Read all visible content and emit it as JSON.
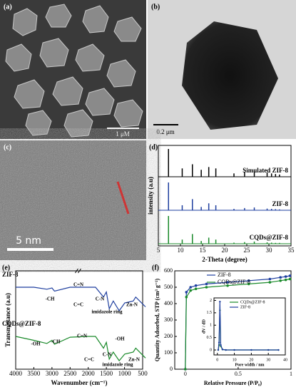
{
  "panels": {
    "a": {
      "label": "(a)",
      "scale": "1 μM"
    },
    "b": {
      "label": "(b)",
      "scale": "0.2 μm"
    },
    "c": {
      "label": "(c)",
      "scale": "5 nm"
    },
    "d": {
      "label": "(d)"
    },
    "e": {
      "label": "(e)"
    },
    "f": {
      "label": "(f)"
    }
  },
  "chart_data": [
    {
      "type": "stick",
      "xlabel": "2-Theta (degree)",
      "ylabel": "intensity (a.u)",
      "xlim": [
        5,
        35
      ],
      "xticks": [
        5,
        10,
        15,
        20,
        25,
        30,
        35
      ],
      "ylim": [
        0,
        100
      ],
      "x": [
        7.3,
        10.4,
        12.7,
        14.7,
        16.4,
        18.0,
        22.1,
        24.5,
        26.7,
        29.6,
        30.6,
        31.5,
        32.4
      ],
      "series": [
        {
          "name": "Simulated ZIF-8",
          "color": "#000000",
          "values": [
            100,
            30,
            45,
            25,
            35,
            30,
            12,
            18,
            20,
            15,
            12,
            10,
            8
          ]
        },
        {
          "name": "ZIF-8",
          "color": "#1f3f9f",
          "values": [
            100,
            18,
            40,
            12,
            25,
            18,
            5,
            8,
            10,
            6,
            5,
            4,
            3
          ]
        },
        {
          "name": "CQDs@ZIF-8",
          "color": "#1a8a2a",
          "values": [
            100,
            15,
            35,
            10,
            22,
            15,
            4,
            6,
            8,
            5,
            4,
            3,
            3
          ]
        }
      ]
    },
    {
      "type": "line",
      "xlabel": "Wavenumber (cm⁻¹)",
      "ylabel": "Transmittance (a.u)",
      "xlim": [
        4000,
        500
      ],
      "xticks": [
        4000,
        3500,
        3000,
        2500,
        2000,
        1500,
        1000,
        500
      ],
      "ylim": [
        0,
        100
      ],
      "x": [
        4000,
        3500,
        3140,
        3000,
        2930,
        2500,
        2000,
        1800,
        1580,
        1500,
        1420,
        1310,
        1146,
        993,
        760,
        690,
        421
      ],
      "series": [
        {
          "name": "ZIF-8",
          "color": "#1f3f9f",
          "values": [
            80,
            80,
            75,
            78,
            70,
            80,
            80,
            80,
            55,
            68,
            25,
            45,
            20,
            40,
            45,
            55,
            30
          ]
        },
        {
          "name": "CQDs@ZIF-8",
          "color": "#1a8a2a",
          "values": [
            80,
            70,
            62,
            70,
            60,
            78,
            80,
            80,
            50,
            65,
            22,
            40,
            18,
            35,
            40,
            50,
            25
          ]
        }
      ],
      "annotations": [
        "-CH",
        "C=N",
        "C=C",
        "C-N",
        "imidazole ring",
        "Zn-N",
        "-OH",
        "-CH",
        "C=N",
        "C=C",
        "C-N",
        "-OH",
        "imidazole ring",
        "Zn-N"
      ]
    },
    {
      "type": "line",
      "xlabel": "Relative Pressure (P/P₀)",
      "ylabel": "Quantity Adsorbed, STP (cm³ g⁻¹)",
      "xlim": [
        -0.1,
        1.0
      ],
      "xticks": [
        0.0,
        0.5,
        1.0
      ],
      "ylim": [
        0,
        600
      ],
      "yticks": [
        0,
        100,
        200,
        300,
        400,
        500,
        600
      ],
      "legend": "upper right",
      "markers": true,
      "x": [
        0,
        0.01,
        0.05,
        0.1,
        0.2,
        0.4,
        0.6,
        0.8,
        0.9,
        0.95,
        0.99
      ],
      "series": [
        {
          "name": "ZIF-8",
          "color": "#1f3f9f",
          "values": [
            0,
            470,
            500,
            510,
            520,
            530,
            540,
            550,
            560,
            565,
            570
          ]
        },
        {
          "name": "CQDs@ZIF-8",
          "color": "#1a8a2a",
          "values": [
            0,
            440,
            480,
            490,
            500,
            510,
            520,
            530,
            540,
            545,
            550
          ]
        }
      ]
    },
    {
      "type": "line",
      "xlabel": "Pore width / nm",
      "ylabel": "dV / dD",
      "xlim": [
        -2,
        40
      ],
      "xticks": [
        0,
        10,
        20,
        30,
        40
      ],
      "ylim": [
        -0.2,
        2.1
      ],
      "yticks": [
        0.0,
        0.5,
        1.0,
        1.5,
        2.0
      ],
      "legend": "upper right",
      "markers": true,
      "x": [
        0.5,
        1,
        1.5,
        2,
        3,
        5,
        10,
        20,
        30,
        36
      ],
      "series": [
        {
          "name": "CQDs@ZIF-8",
          "color": "#1a8a2a",
          "values": [
            0,
            0.2,
            1.6,
            0.15,
            0.02,
            0,
            0,
            0,
            0,
            0
          ]
        },
        {
          "name": "ZIF-8",
          "color": "#1f3f9f",
          "values": [
            0,
            0.3,
            1.95,
            0.2,
            0.02,
            0,
            0,
            0,
            0,
            0
          ]
        }
      ]
    }
  ]
}
